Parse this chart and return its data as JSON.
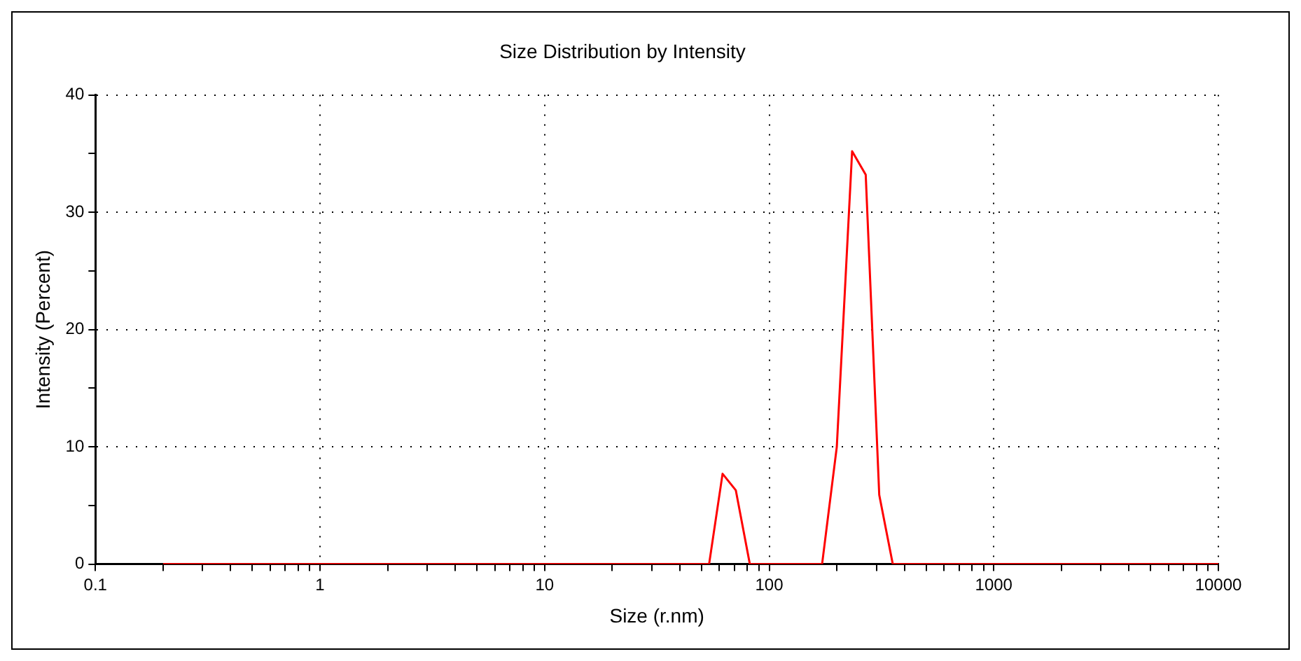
{
  "chart_data": {
    "type": "line",
    "title": "Size Distribution by Intensity",
    "xlabel": "Size (r.nm)",
    "ylabel": "Intensity (Percent)",
    "x": [
      0.2,
      54,
      62,
      71,
      82,
      172,
      200,
      234,
      269,
      309,
      355,
      10000
    ],
    "series": [
      {
        "color": "#ff0000",
        "values": [
          0,
          0,
          7.7,
          6.3,
          0,
          0,
          10,
          35.2,
          33.2,
          5.9,
          0,
          0
        ]
      }
    ],
    "log": "x",
    "xlim": [
      0.1,
      10000
    ],
    "xticks": [
      0.1,
      {
        "value": 0.2,
        "label": null
      },
      {
        "value": 0.3,
        "label": null
      },
      {
        "value": 0.4,
        "label": null
      },
      {
        "value": 0.5,
        "label": null
      },
      {
        "value": 0.6,
        "label": null
      },
      {
        "value": 0.7,
        "label": null
      },
      {
        "value": 0.8,
        "label": null
      },
      {
        "value": 0.9,
        "label": null
      },
      1,
      {
        "value": 2,
        "label": null
      },
      {
        "value": 3,
        "label": null
      },
      {
        "value": 4,
        "label": null
      },
      {
        "value": 5,
        "label": null
      },
      {
        "value": 6,
        "label": null
      },
      {
        "value": 7,
        "label": null
      },
      {
        "value": 8,
        "label": null
      },
      {
        "value": 9,
        "label": null
      },
      10,
      {
        "value": 20,
        "label": null
      },
      {
        "value": 30,
        "label": null
      },
      {
        "value": 40,
        "label": null
      },
      {
        "value": 50,
        "label": null
      },
      {
        "value": 60,
        "label": null
      },
      {
        "value": 70,
        "label": null
      },
      {
        "value": 80,
        "label": null
      },
      {
        "value": 90,
        "label": null
      },
      100,
      {
        "value": 200,
        "label": null
      },
      {
        "value": 300,
        "label": null
      },
      {
        "value": 400,
        "label": null
      },
      {
        "value": 500,
        "label": null
      },
      {
        "value": 600,
        "label": null
      },
      {
        "value": 700,
        "label": null
      },
      {
        "value": 800,
        "label": null
      },
      {
        "value": 900,
        "label": null
      },
      1000,
      {
        "value": 2000,
        "label": null
      },
      {
        "value": 3000,
        "label": null
      },
      {
        "value": 4000,
        "label": null
      },
      {
        "value": 5000,
        "label": null
      },
      {
        "value": 6000,
        "label": null
      },
      {
        "value": 7000,
        "label": null
      },
      {
        "value": 8000,
        "label": null
      },
      {
        "value": 9000,
        "label": null
      },
      10000
    ],
    "ylim": [
      0,
      40
    ],
    "yticks": [
      0,
      {
        "value": 5,
        "label": null
      },
      10,
      {
        "value": 15,
        "label": null
      },
      20,
      {
        "value": 25,
        "label": null
      },
      30,
      {
        "value": 35,
        "label": null
      },
      40
    ],
    "grid": true,
    "legend": false,
    "marker": "none",
    "line_style": "solid"
  }
}
